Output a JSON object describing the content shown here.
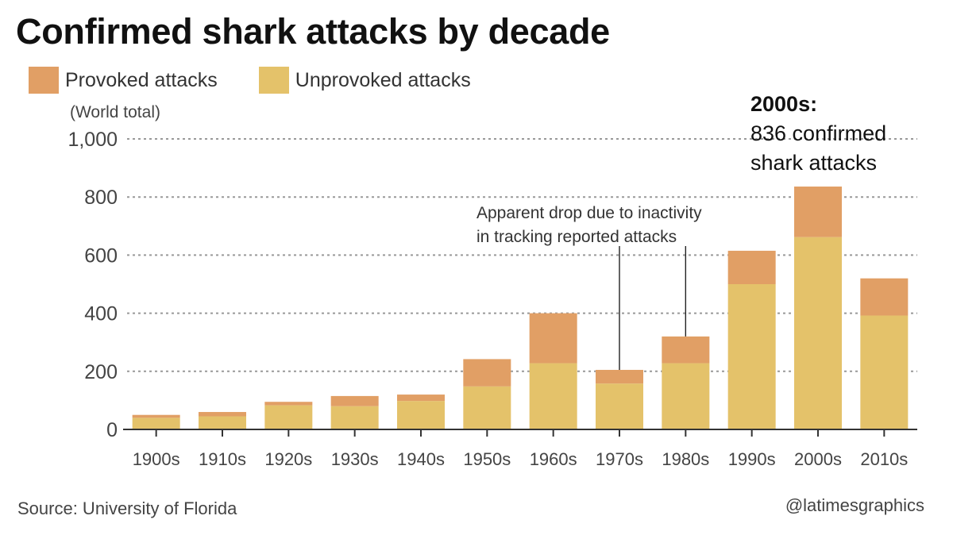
{
  "title": "Confirmed shark attacks by decade",
  "legend": {
    "provoked": "Provoked attacks",
    "unprovoked": "Unprovoked attacks"
  },
  "colors": {
    "provoked": "#e19f65",
    "unprovoked": "#e4c26a",
    "gridline": "#999999",
    "axis": "#333333"
  },
  "source": "Source: University of Florida",
  "credit": "@latimesgraphics",
  "chart_data": {
    "type": "bar",
    "stacked": true,
    "ylabel": "(World total)",
    "ylim": [
      0,
      1000
    ],
    "yticks": [
      0,
      200,
      400,
      600,
      800,
      1000
    ],
    "ytick_labels": [
      "0",
      "200",
      "400",
      "600",
      "800",
      "1,000"
    ],
    "categories": [
      "1900s",
      "1910s",
      "1920s",
      "1930s",
      "1940s",
      "1950s",
      "1960s",
      "1970s",
      "1980s",
      "1990s",
      "2000s",
      "2010s"
    ],
    "series": [
      {
        "name": "Unprovoked attacks",
        "values": [
          40,
          45,
          83,
          80,
          98,
          148,
          228,
          158,
          228,
          500,
          662,
          392
        ]
      },
      {
        "name": "Provoked attacks",
        "values": [
          10,
          15,
          12,
          35,
          22,
          94,
          172,
          47,
          92,
          115,
          174,
          128
        ]
      }
    ],
    "grid": true,
    "legend_position": "top-left",
    "annotations": [
      {
        "lines": [
          "Apparent drop due to inactivity",
          "in tracking reported attacks"
        ],
        "targets": [
          "1970s",
          "1980s"
        ]
      },
      {
        "bold": "2000s:",
        "lines": [
          "836 confirmed",
          "shark attacks"
        ],
        "target": "2000s"
      }
    ]
  }
}
